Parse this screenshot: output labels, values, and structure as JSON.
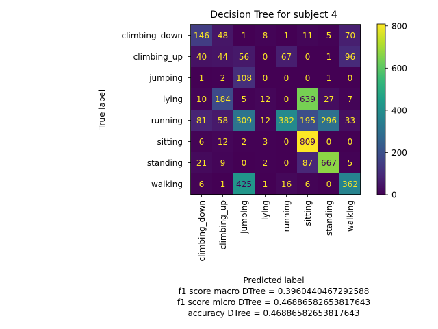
{
  "chart_data": {
    "type": "heatmap",
    "title": "Decision Tree for subject 4",
    "ylabel": "True label",
    "xlabel": "Predicted label",
    "notes": [
      "f1 score macro DTree = 0.3960440467292588",
      "f1 score micro DTree = 0.46886582653817643",
      "accuracy DTree = 0.46886582653817643"
    ],
    "rows": [
      "climbing_down",
      "climbing_up",
      "jumping",
      "lying",
      "running",
      "sitting",
      "standing",
      "walking"
    ],
    "columns": [
      "climbing_down",
      "climbing_up",
      "jumping",
      "lying",
      "running",
      "sitting",
      "standing",
      "walking"
    ],
    "values": [
      [
        146,
        48,
        1,
        8,
        1,
        11,
        5,
        70
      ],
      [
        40,
        44,
        56,
        0,
        67,
        0,
        1,
        96
      ],
      [
        1,
        2,
        108,
        0,
        0,
        0,
        1,
        0
      ],
      [
        10,
        184,
        5,
        12,
        0,
        639,
        27,
        7
      ],
      [
        81,
        58,
        309,
        12,
        382,
        195,
        296,
        33
      ],
      [
        6,
        12,
        2,
        3,
        0,
        809,
        0,
        0
      ],
      [
        21,
        9,
        0,
        2,
        0,
        87,
        667,
        5
      ],
      [
        6,
        1,
        425,
        1,
        16,
        6,
        0,
        362
      ]
    ],
    "colormap": "viridis",
    "colorbar": {
      "min": 0,
      "max": 809,
      "ticks": [
        0,
        200,
        400,
        600,
        800
      ]
    },
    "text_colors": {
      "low": "#fde725",
      "high": "#440154"
    }
  }
}
